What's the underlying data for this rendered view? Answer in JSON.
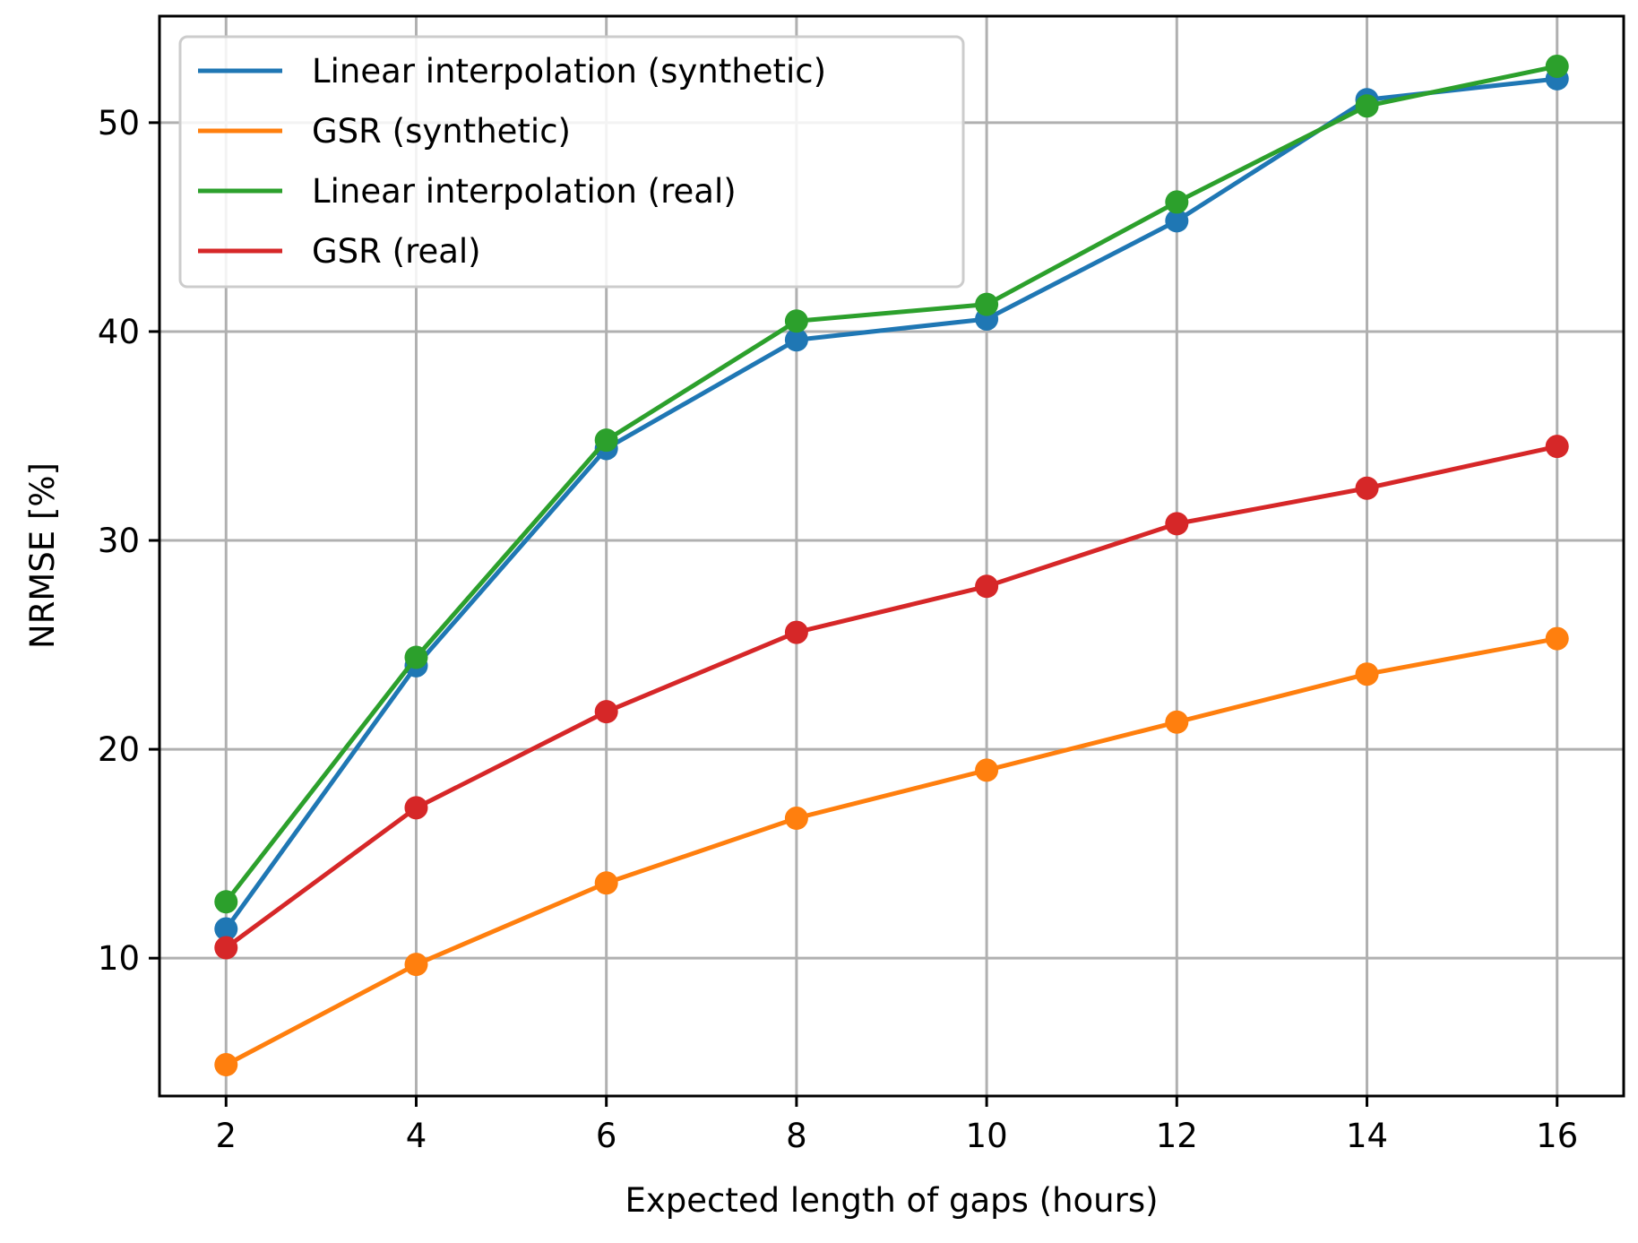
{
  "chart_data": {
    "type": "line",
    "title": "",
    "xlabel": "Expected length of gaps (hours)",
    "ylabel": "NRMSE [%]",
    "x": [
      2,
      4,
      6,
      8,
      10,
      12,
      14,
      16
    ],
    "xlim": [
      1.3,
      16.7
    ],
    "ylim": [
      3.4,
      55.1
    ],
    "xticks": [
      2,
      4,
      6,
      8,
      10,
      12,
      14,
      16
    ],
    "yticks": [
      10,
      20,
      30,
      40,
      50
    ],
    "grid": true,
    "legend_position": "top-left",
    "series": [
      {
        "name": "Linear interpolation (synthetic)",
        "color": "#1f77b4",
        "values": [
          11.4,
          24.0,
          34.4,
          39.6,
          40.6,
          45.3,
          51.1,
          52.1
        ]
      },
      {
        "name": "GSR (synthetic)",
        "color": "#ff7f0e",
        "values": [
          4.9,
          9.7,
          13.6,
          16.7,
          19.0,
          21.3,
          23.6,
          25.3
        ]
      },
      {
        "name": "Linear interpolation (real)",
        "color": "#2ca02c",
        "values": [
          12.7,
          24.4,
          34.8,
          40.5,
          41.3,
          46.2,
          50.8,
          52.7
        ]
      },
      {
        "name": "GSR (real)",
        "color": "#d62728",
        "values": [
          10.5,
          17.2,
          21.8,
          25.6,
          27.8,
          30.8,
          32.5,
          34.5
        ]
      }
    ]
  }
}
